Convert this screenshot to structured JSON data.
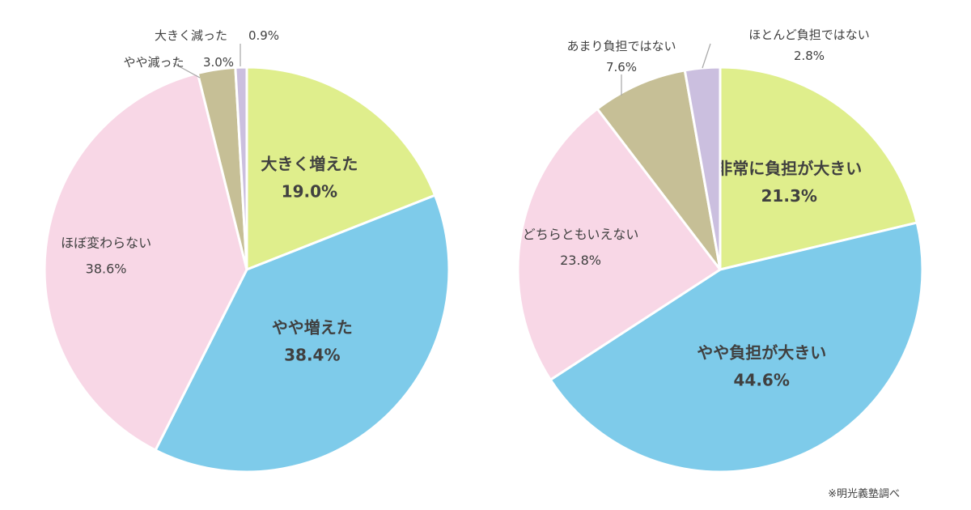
{
  "chart_data": [
    {
      "type": "pie",
      "start_angle": 0,
      "direction": "clockwise",
      "slices": [
        {
          "label": "大きく増えた",
          "value": 19.0,
          "value_label": "19.0%",
          "color": "#dfee8c"
        },
        {
          "label": "やや増えた",
          "value": 38.4,
          "value_label": "38.4%",
          "color": "#7ecbea"
        },
        {
          "label": "ほぼ変わらない",
          "value": 38.6,
          "value_label": "38.6%",
          "color": "#f8d7e6"
        },
        {
          "label": "やや減った",
          "value": 3.0,
          "value_label": "3.0%",
          "color": "#c6bf96"
        },
        {
          "label": "大きく減った",
          "value": 0.9,
          "value_label": "0.9%",
          "color": "#cbbfdf"
        }
      ]
    },
    {
      "type": "pie",
      "start_angle": 0,
      "direction": "clockwise",
      "slices": [
        {
          "label": "非常に負担が大きい",
          "value": 21.3,
          "value_label": "21.3%",
          "color": "#dfee8c"
        },
        {
          "label": "やや負担が大きい",
          "value": 44.6,
          "value_label": "44.6%",
          "color": "#7ecbea"
        },
        {
          "label": "どちらともいえない",
          "value": 23.8,
          "value_label": "23.8%",
          "color": "#f8d7e6"
        },
        {
          "label": "あまり負担ではない",
          "value": 7.6,
          "value_label": "7.6%",
          "color": "#c6bf96"
        },
        {
          "label": "ほとんど負担ではない",
          "value": 2.8,
          "value_label": "2.8%",
          "color": "#cbbfdf"
        }
      ]
    }
  ],
  "source_note": "※明光義塾調べ"
}
